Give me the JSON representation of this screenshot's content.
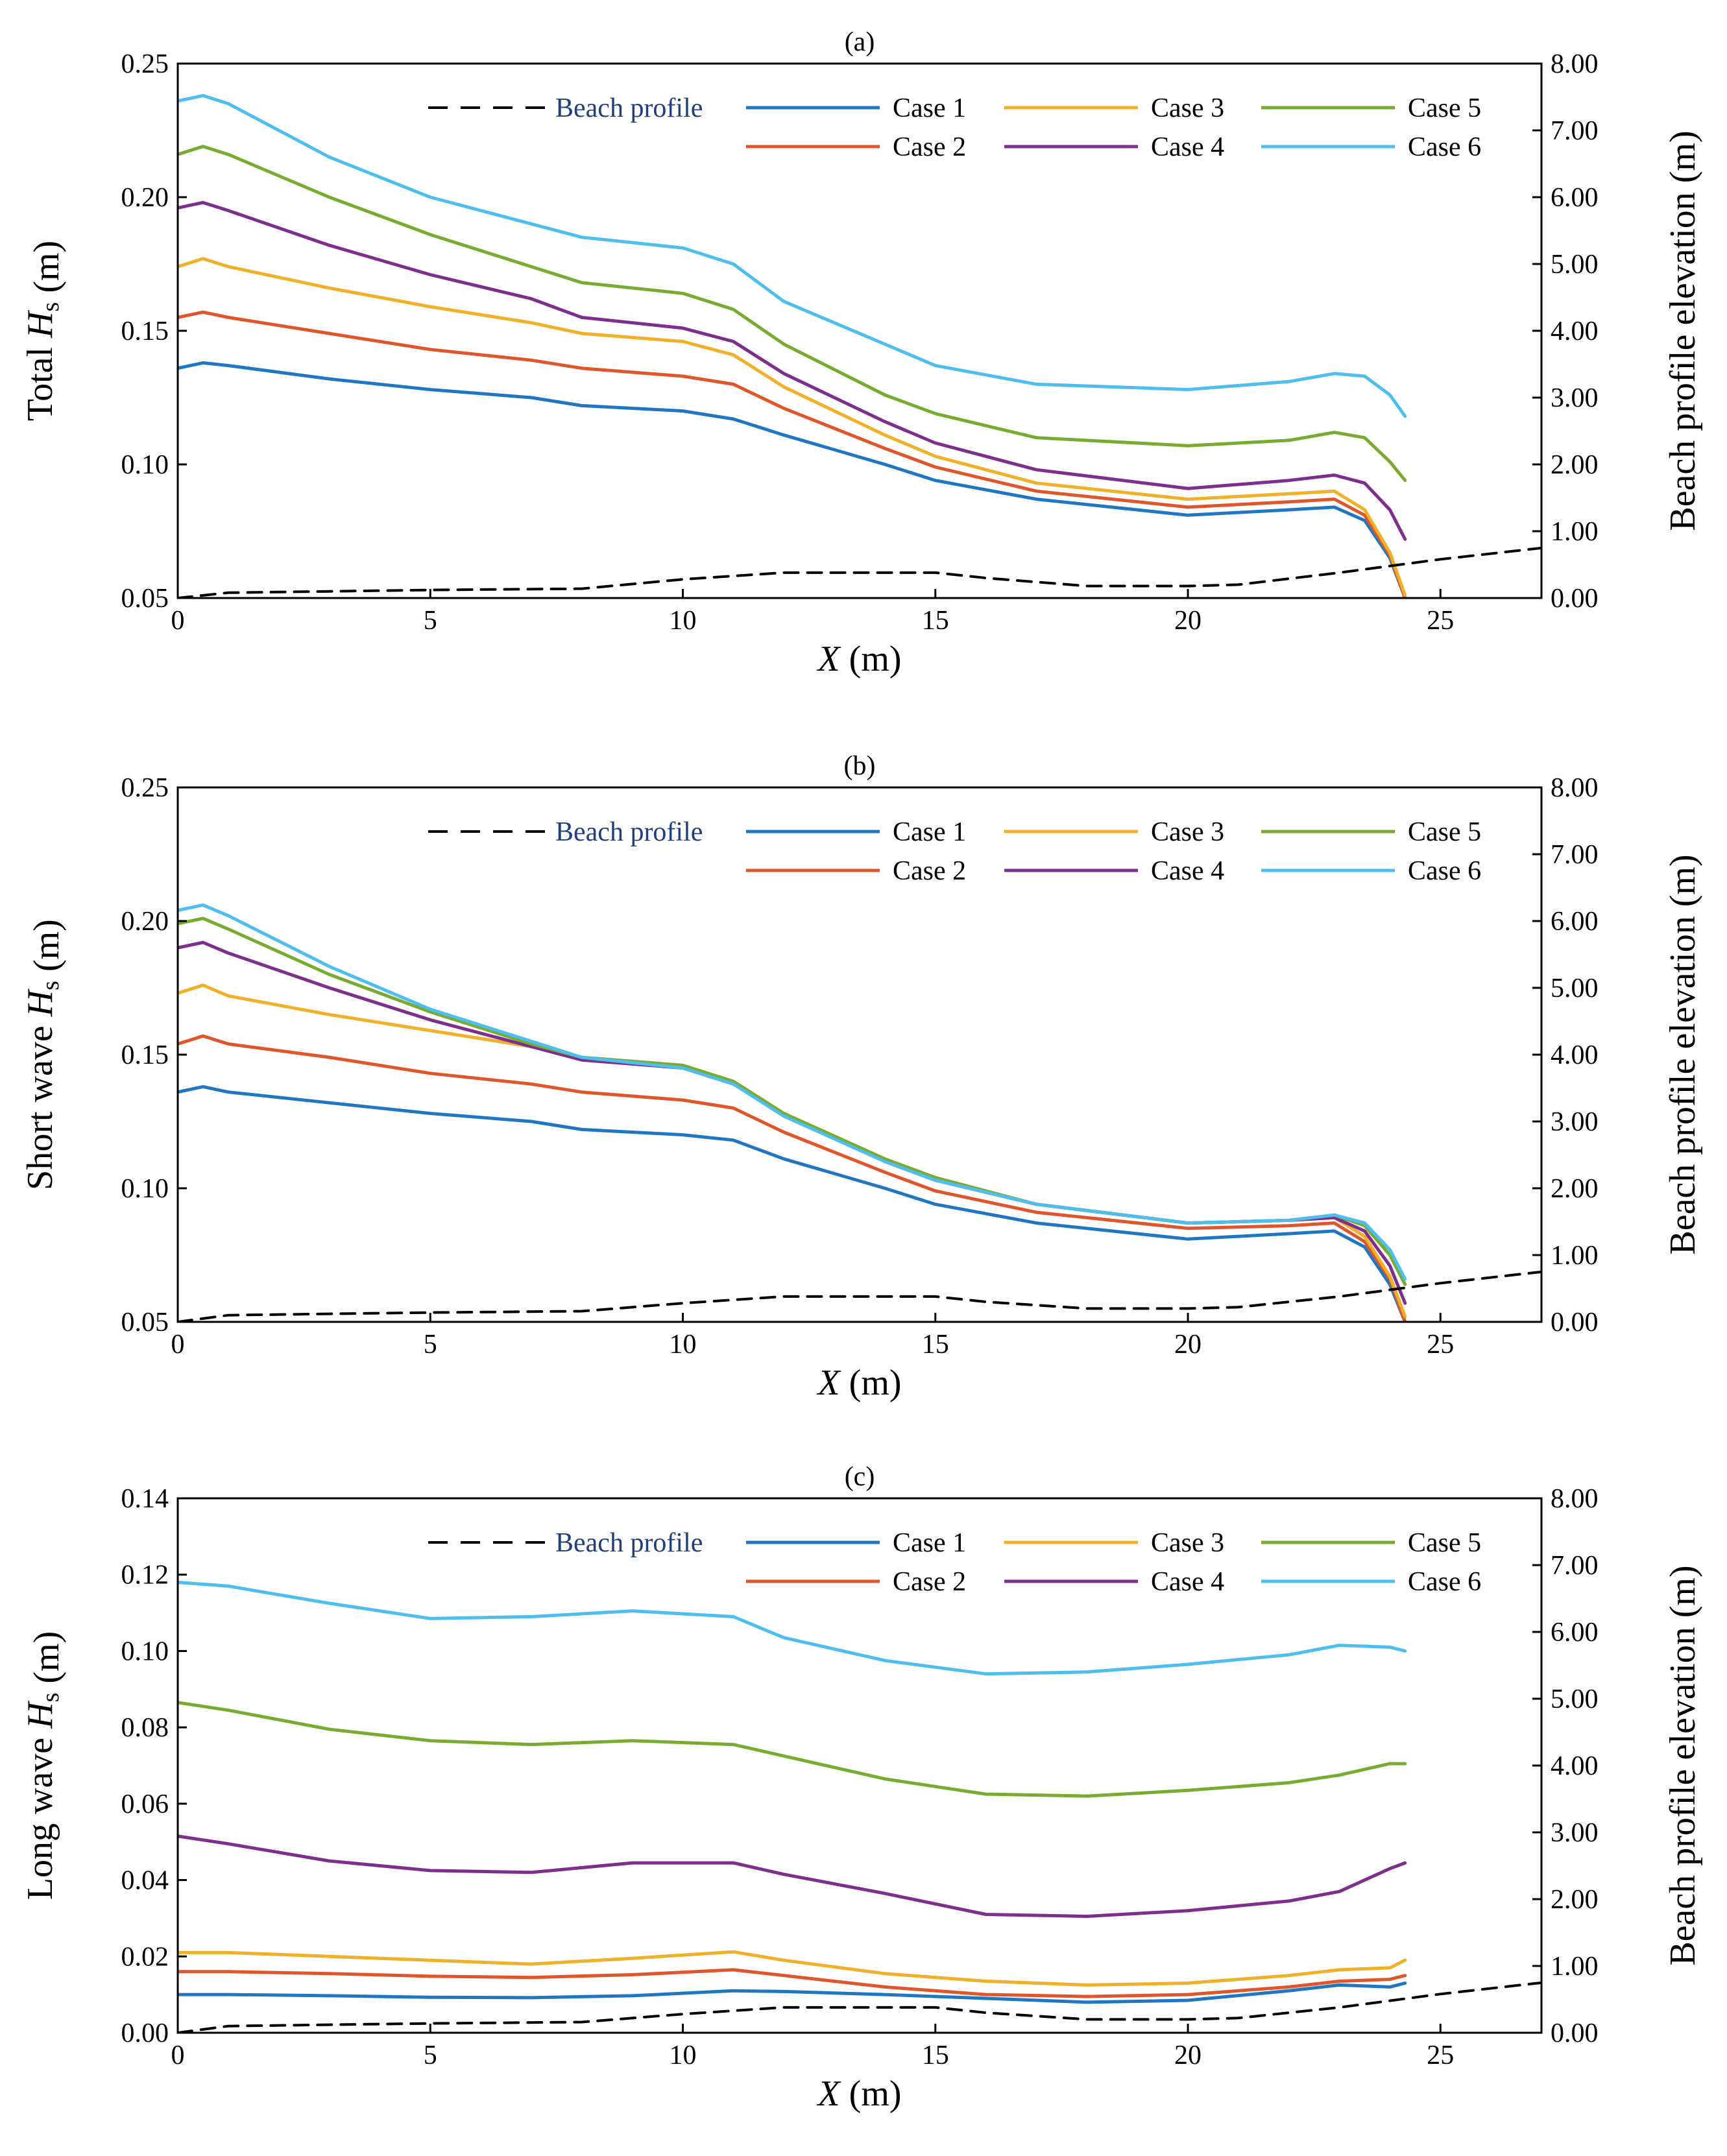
{
  "colors": {
    "Case 1": "#1f77c4",
    "Case 2": "#e0562a",
    "Case 3": "#f0b027",
    "Case 4": "#7e2f8e",
    "Case 5": "#77ac30",
    "Case 6": "#4dbeee",
    "Beach profile": "#000000"
  },
  "chart_data": [
    {
      "type": "line",
      "title": "(a)",
      "xlabel": "X (m)",
      "ylabel": "Total Hs (m)",
      "y2label": "Beach profile elevation (m)",
      "xlim": [
        0,
        27
      ],
      "ylim": [
        0.05,
        0.25
      ],
      "y2lim": [
        0,
        8
      ],
      "xticks": [
        "0",
        "5",
        "10",
        "15",
        "20",
        "25"
      ],
      "yticks": [
        "0.05",
        "0.10",
        "0.15",
        "0.20",
        "0.25"
      ],
      "y2ticks": [
        "0.00",
        "1.00",
        "2.00",
        "3.00",
        "4.00",
        "5.00",
        "6.00",
        "7.00",
        "8.00"
      ],
      "legend": [
        "Beach profile",
        "Case 1",
        "Case 2",
        "Case 3",
        "Case 4",
        "Case 5",
        "Case 6"
      ],
      "legend_placement": "top-right",
      "series": [
        {
          "name": "Case 1",
          "x": [
            0,
            0.5,
            1,
            3,
            5,
            7,
            8,
            10,
            11,
            12,
            14,
            15,
            17,
            20,
            22,
            22.9,
            23.5,
            24,
            24.3
          ],
          "values": [
            0.136,
            0.138,
            0.137,
            0.132,
            0.128,
            0.125,
            0.122,
            0.12,
            0.117,
            0.111,
            0.1,
            0.094,
            0.087,
            0.081,
            0.083,
            0.084,
            0.079,
            0.065,
            0.05
          ]
        },
        {
          "name": "Case 2",
          "x": [
            0,
            0.5,
            1,
            3,
            5,
            7,
            8,
            10,
            11,
            12,
            14,
            15,
            17,
            20,
            22,
            22.9,
            23.5,
            24,
            24.3
          ],
          "values": [
            0.155,
            0.157,
            0.155,
            0.149,
            0.143,
            0.139,
            0.136,
            0.133,
            0.13,
            0.121,
            0.106,
            0.099,
            0.09,
            0.084,
            0.086,
            0.087,
            0.081,
            0.066,
            0.05
          ]
        },
        {
          "name": "Case 3",
          "x": [
            0,
            0.5,
            1,
            3,
            5,
            7,
            8,
            10,
            11,
            12,
            14,
            15,
            17,
            20,
            22,
            22.9,
            23.5,
            24,
            24.3
          ],
          "values": [
            0.174,
            0.177,
            0.174,
            0.166,
            0.159,
            0.153,
            0.149,
            0.146,
            0.141,
            0.129,
            0.111,
            0.103,
            0.093,
            0.087,
            0.089,
            0.09,
            0.083,
            0.067,
            0.051
          ]
        },
        {
          "name": "Case 4",
          "x": [
            0,
            0.5,
            1,
            3,
            5,
            7,
            8,
            10,
            11,
            12,
            14,
            15,
            17,
            20,
            22,
            22.9,
            23.5,
            24,
            24.3
          ],
          "values": [
            0.196,
            0.198,
            0.195,
            0.182,
            0.171,
            0.162,
            0.155,
            0.151,
            0.146,
            0.134,
            0.116,
            0.108,
            0.098,
            0.091,
            0.094,
            0.096,
            0.093,
            0.083,
            0.072
          ]
        },
        {
          "name": "Case 5",
          "x": [
            0,
            0.5,
            1,
            3,
            5,
            7,
            8,
            10,
            11,
            12,
            14,
            15,
            17,
            20,
            22,
            22.9,
            23.5,
            24,
            24.3
          ],
          "values": [
            0.216,
            0.219,
            0.216,
            0.2,
            0.186,
            0.174,
            0.168,
            0.164,
            0.158,
            0.145,
            0.126,
            0.119,
            0.11,
            0.107,
            0.109,
            0.112,
            0.11,
            0.101,
            0.094
          ]
        },
        {
          "name": "Case 6",
          "x": [
            0,
            0.5,
            1,
            3,
            5,
            7,
            8,
            10,
            11,
            12,
            14,
            15,
            17,
            20,
            22,
            22.9,
            23.5,
            24,
            24.3
          ],
          "values": [
            0.236,
            0.238,
            0.235,
            0.215,
            0.2,
            0.19,
            0.185,
            0.181,
            0.175,
            0.161,
            0.145,
            0.137,
            0.13,
            0.128,
            0.131,
            0.134,
            0.133,
            0.126,
            0.118
          ]
        },
        {
          "name": "Beach profile",
          "axis": "right",
          "dashed": true,
          "x": [
            0,
            1,
            3,
            5,
            8,
            10,
            12,
            15,
            16,
            18,
            20,
            21,
            23,
            25,
            27
          ],
          "values": [
            0.0,
            0.08,
            0.1,
            0.12,
            0.14,
            0.28,
            0.38,
            0.38,
            0.3,
            0.18,
            0.18,
            0.2,
            0.38,
            0.58,
            0.75
          ]
        }
      ]
    },
    {
      "type": "line",
      "title": "(b)",
      "xlabel": "X (m)",
      "ylabel": "Short wave Hs (m)",
      "y2label": "Beach profile elevation (m)",
      "xlim": [
        0,
        27
      ],
      "ylim": [
        0.05,
        0.25
      ],
      "y2lim": [
        0,
        8
      ],
      "xticks": [
        "0",
        "5",
        "10",
        "15",
        "20",
        "25"
      ],
      "yticks": [
        "0.05",
        "0.10",
        "0.15",
        "0.20",
        "0.25"
      ],
      "y2ticks": [
        "0.00",
        "1.00",
        "2.00",
        "3.00",
        "4.00",
        "5.00",
        "6.00",
        "7.00",
        "8.00"
      ],
      "legend": [
        "Beach profile",
        "Case 1",
        "Case 2",
        "Case 3",
        "Case 4",
        "Case 5",
        "Case 6"
      ],
      "legend_placement": "top-right",
      "series": [
        {
          "name": "Case 1",
          "x": [
            0,
            0.5,
            1,
            3,
            5,
            7,
            8,
            10,
            11,
            12,
            14,
            15,
            17,
            20,
            22,
            22.9,
            23.5,
            24,
            24.3
          ],
          "values": [
            0.136,
            0.138,
            0.136,
            0.132,
            0.128,
            0.125,
            0.122,
            0.12,
            0.118,
            0.111,
            0.1,
            0.094,
            0.087,
            0.081,
            0.083,
            0.084,
            0.078,
            0.064,
            0.05
          ]
        },
        {
          "name": "Case 2",
          "x": [
            0,
            0.5,
            1,
            3,
            5,
            7,
            8,
            10,
            11,
            12,
            14,
            15,
            17,
            20,
            22,
            22.9,
            23.5,
            24,
            24.3
          ],
          "values": [
            0.154,
            0.157,
            0.154,
            0.149,
            0.143,
            0.139,
            0.136,
            0.133,
            0.13,
            0.121,
            0.106,
            0.099,
            0.091,
            0.085,
            0.086,
            0.087,
            0.08,
            0.066,
            0.05
          ]
        },
        {
          "name": "Case 3",
          "x": [
            0,
            0.5,
            1,
            3,
            5,
            7,
            8,
            10,
            11,
            12,
            14,
            15,
            17,
            20,
            22,
            22.9,
            23.5,
            24,
            24.3
          ],
          "values": [
            0.173,
            0.176,
            0.172,
            0.165,
            0.159,
            0.153,
            0.149,
            0.146,
            0.14,
            0.128,
            0.111,
            0.103,
            0.094,
            0.087,
            0.088,
            0.089,
            0.082,
            0.067,
            0.052
          ]
        },
        {
          "name": "Case 4",
          "x": [
            0,
            0.5,
            1,
            3,
            5,
            7,
            8,
            10,
            11,
            12,
            14,
            15,
            17,
            20,
            22,
            22.9,
            23.5,
            24,
            24.3
          ],
          "values": [
            0.19,
            0.192,
            0.188,
            0.175,
            0.163,
            0.153,
            0.148,
            0.145,
            0.139,
            0.128,
            0.11,
            0.103,
            0.094,
            0.087,
            0.088,
            0.089,
            0.084,
            0.071,
            0.057
          ]
        },
        {
          "name": "Case 5",
          "x": [
            0,
            0.5,
            1,
            3,
            5,
            7,
            8,
            10,
            11,
            12,
            14,
            15,
            17,
            20,
            22,
            22.9,
            23.5,
            24,
            24.3
          ],
          "values": [
            0.199,
            0.201,
            0.197,
            0.18,
            0.166,
            0.154,
            0.149,
            0.146,
            0.14,
            0.128,
            0.111,
            0.104,
            0.094,
            0.087,
            0.088,
            0.09,
            0.086,
            0.075,
            0.064
          ]
        },
        {
          "name": "Case 6",
          "x": [
            0,
            0.5,
            1,
            3,
            5,
            7,
            8,
            10,
            11,
            12,
            14,
            15,
            17,
            20,
            22,
            22.9,
            23.5,
            24,
            24.3
          ],
          "values": [
            0.204,
            0.206,
            0.202,
            0.183,
            0.167,
            0.155,
            0.149,
            0.145,
            0.139,
            0.127,
            0.11,
            0.103,
            0.094,
            0.087,
            0.088,
            0.09,
            0.087,
            0.077,
            0.066
          ]
        },
        {
          "name": "Beach profile",
          "axis": "right",
          "dashed": true,
          "x": [
            0,
            1,
            3,
            5,
            8,
            10,
            12,
            15,
            16,
            18,
            20,
            21,
            23,
            25,
            27
          ],
          "values": [
            0.0,
            0.1,
            0.12,
            0.14,
            0.16,
            0.28,
            0.38,
            0.38,
            0.3,
            0.2,
            0.2,
            0.22,
            0.38,
            0.58,
            0.75
          ]
        }
      ]
    },
    {
      "type": "line",
      "title": "(c)",
      "xlabel": "X (m)",
      "ylabel": "Long wave Hs (m)",
      "y2label": "Beach profile elevation (m)",
      "xlim": [
        0,
        27
      ],
      "ylim": [
        0,
        0.14
      ],
      "y2lim": [
        0,
        8
      ],
      "xticks": [
        "0",
        "5",
        "10",
        "15",
        "20",
        "25"
      ],
      "yticks": [
        "0.00",
        "0.02",
        "0.04",
        "0.06",
        "0.08",
        "0.10",
        "0.12",
        "0.14"
      ],
      "y2ticks": [
        "0.00",
        "1.00",
        "2.00",
        "3.00",
        "4.00",
        "5.00",
        "6.00",
        "7.00",
        "8.00"
      ],
      "legend": [
        "Beach profile",
        "Case 1",
        "Case 2",
        "Case 3",
        "Case 4",
        "Case 5",
        "Case 6"
      ],
      "legend_placement": "top-right",
      "series": [
        {
          "name": "Case 1",
          "x": [
            0,
            1,
            3,
            5,
            7,
            9,
            11,
            12,
            14,
            16,
            18,
            20,
            22,
            23,
            24,
            24.3
          ],
          "values": [
            0.01,
            0.01,
            0.0097,
            0.0093,
            0.0092,
            0.0097,
            0.011,
            0.0108,
            0.01,
            0.009,
            0.008,
            0.0085,
            0.011,
            0.0125,
            0.012,
            0.013
          ]
        },
        {
          "name": "Case 2",
          "x": [
            0,
            1,
            3,
            5,
            7,
            9,
            11,
            12,
            14,
            16,
            18,
            20,
            22,
            23,
            24,
            24.3
          ],
          "values": [
            0.016,
            0.016,
            0.0155,
            0.0148,
            0.0145,
            0.0152,
            0.0165,
            0.015,
            0.012,
            0.01,
            0.0095,
            0.01,
            0.012,
            0.0135,
            0.014,
            0.015
          ]
        },
        {
          "name": "Case 3",
          "x": [
            0,
            1,
            3,
            5,
            7,
            9,
            11,
            12,
            14,
            16,
            18,
            20,
            22,
            23,
            24,
            24.3
          ],
          "values": [
            0.021,
            0.021,
            0.02,
            0.019,
            0.018,
            0.0195,
            0.0212,
            0.019,
            0.0155,
            0.0135,
            0.0125,
            0.013,
            0.015,
            0.0165,
            0.017,
            0.019
          ]
        },
        {
          "name": "Case 4",
          "x": [
            0,
            1,
            3,
            5,
            7,
            9,
            11,
            12,
            14,
            16,
            18,
            20,
            22,
            23,
            24,
            24.3
          ],
          "values": [
            0.0515,
            0.0495,
            0.045,
            0.0425,
            0.042,
            0.0445,
            0.0445,
            0.0415,
            0.0365,
            0.031,
            0.0305,
            0.032,
            0.0345,
            0.037,
            0.043,
            0.0445
          ]
        },
        {
          "name": "Case 5",
          "x": [
            0,
            1,
            3,
            5,
            7,
            9,
            11,
            12,
            14,
            16,
            18,
            20,
            22,
            23,
            24,
            24.3
          ],
          "values": [
            0.0865,
            0.0845,
            0.0795,
            0.0765,
            0.0755,
            0.0765,
            0.0755,
            0.0725,
            0.0665,
            0.0625,
            0.062,
            0.0635,
            0.0655,
            0.0675,
            0.0705,
            0.0705
          ]
        },
        {
          "name": "Case 6",
          "x": [
            0,
            1,
            3,
            5,
            7,
            9,
            11,
            12,
            14,
            16,
            18,
            20,
            22,
            23,
            24,
            24.3
          ],
          "values": [
            0.118,
            0.117,
            0.1125,
            0.1085,
            0.109,
            0.1105,
            0.109,
            0.1035,
            0.0975,
            0.094,
            0.0945,
            0.0965,
            0.099,
            0.1015,
            0.101,
            0.1
          ]
        },
        {
          "name": "Beach profile",
          "axis": "right",
          "dashed": true,
          "x": [
            0,
            1,
            3,
            5,
            8,
            10,
            12,
            15,
            16,
            18,
            20,
            21,
            23,
            25,
            27
          ],
          "values": [
            0.0,
            0.1,
            0.12,
            0.14,
            0.16,
            0.28,
            0.38,
            0.38,
            0.3,
            0.2,
            0.2,
            0.22,
            0.38,
            0.58,
            0.75
          ]
        }
      ]
    }
  ]
}
